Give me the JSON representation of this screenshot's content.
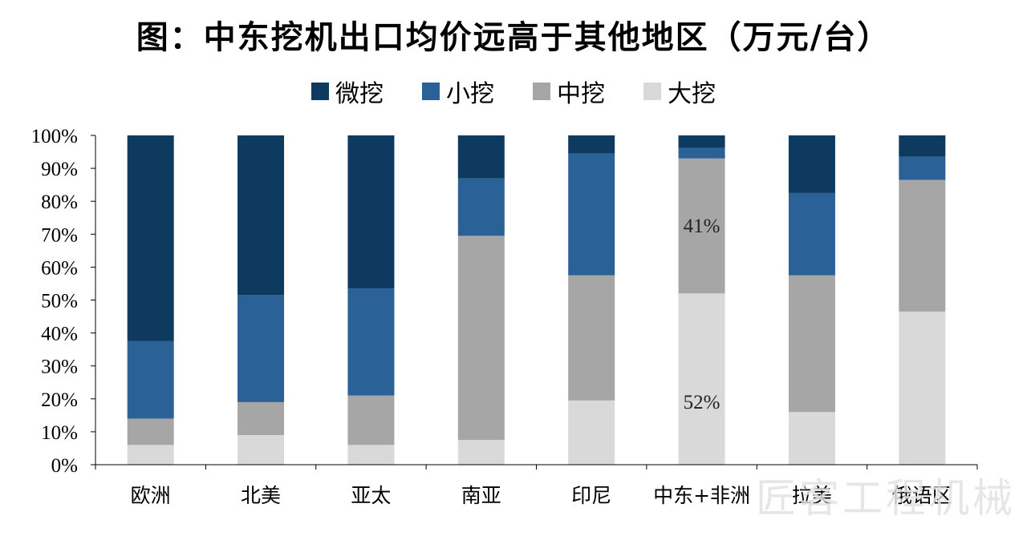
{
  "title": "图：中东挖机出口均价远高于其他地区（万元/台）",
  "watermark": "匠客工程机械",
  "chart_data": {
    "type": "bar",
    "stacked": true,
    "categories": [
      "欧洲",
      "北美",
      "亚太",
      "南亚",
      "印尼",
      "中东+非洲",
      "拉美",
      "俄语区"
    ],
    "series": [
      {
        "name": "大挖",
        "color": "#d9d9d9",
        "values": [
          6,
          9,
          6,
          7.5,
          19.5,
          52,
          16,
          46.5
        ]
      },
      {
        "name": "中挖",
        "color": "#a6a6a6",
        "values": [
          8,
          10,
          15,
          62,
          38,
          41,
          41.5,
          40
        ]
      },
      {
        "name": "小挖",
        "color": "#2a6196",
        "values": [
          23.5,
          32.5,
          32.5,
          17.5,
          37,
          3.2,
          25,
          7
        ]
      },
      {
        "name": "微挖",
        "color": "#0f3a5f",
        "values": [
          62.5,
          48.5,
          46.5,
          13,
          5.5,
          3.8,
          17.5,
          6.5
        ]
      }
    ],
    "legend_order": [
      "微挖",
      "小挖",
      "中挖",
      "大挖"
    ],
    "yticks": [
      "0%",
      "10%",
      "20%",
      "30%",
      "40%",
      "50%",
      "60%",
      "70%",
      "80%",
      "90%",
      "100%"
    ],
    "ylim": [
      0,
      100
    ],
    "annotations": [
      {
        "category": "中东+非洲",
        "series": "大挖",
        "text": "52%"
      },
      {
        "category": "中东+非洲",
        "series": "中挖",
        "text": "41%"
      }
    ],
    "legend_position": "top",
    "grid": false
  }
}
